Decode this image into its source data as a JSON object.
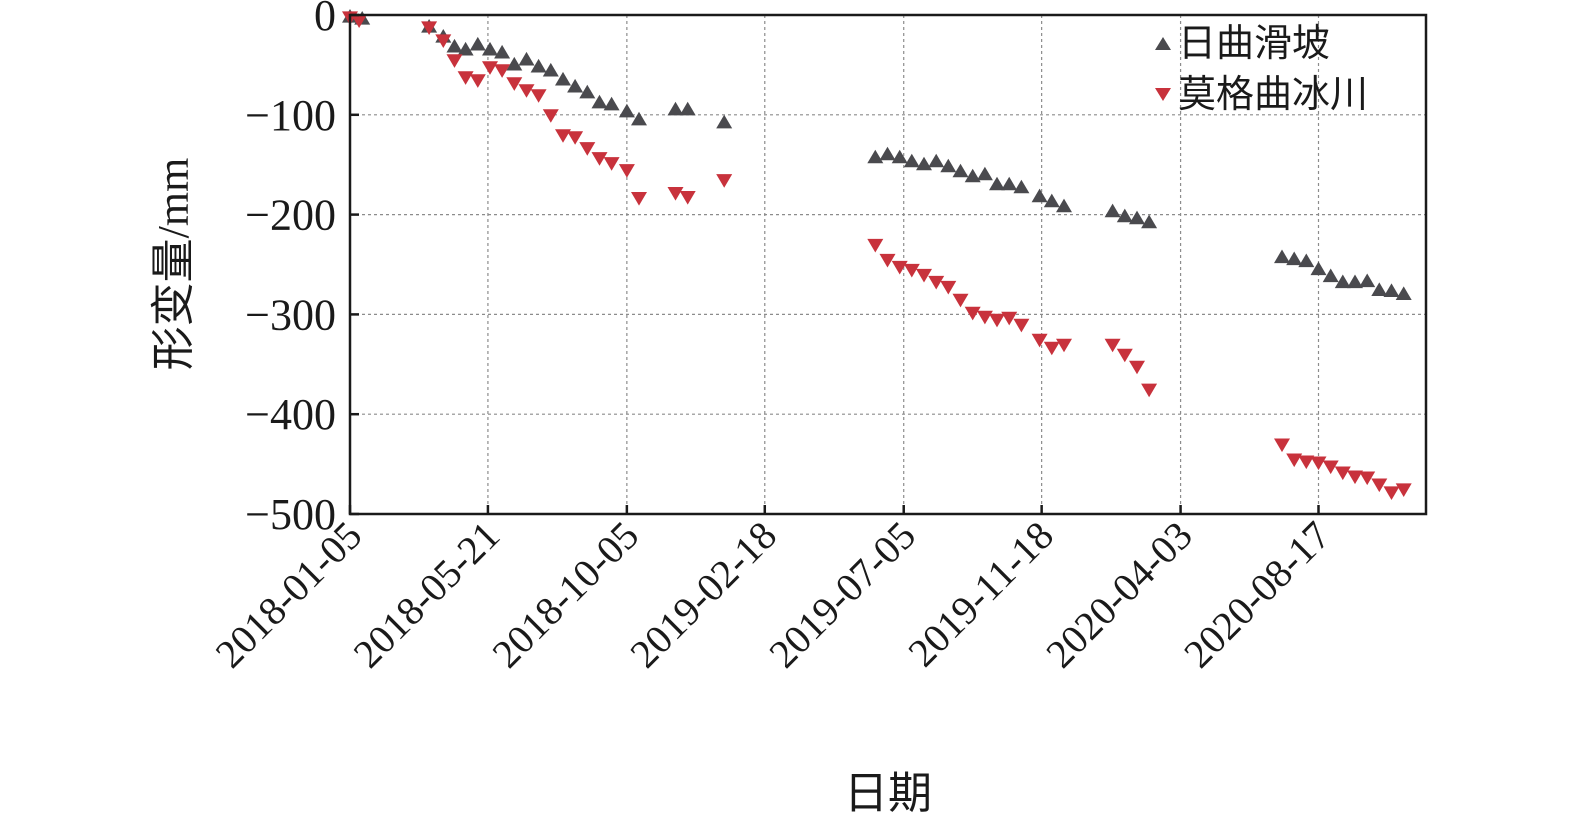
{
  "chart_data": {
    "type": "scatter",
    "xlabel": "日期",
    "ylabel": "形变量/mm",
    "ylim": [
      -500,
      0
    ],
    "yticks": [
      0,
      -100,
      -200,
      -300,
      -400,
      -500
    ],
    "ytick_labels": [
      "0",
      "−100",
      "−200",
      "−300",
      "−400",
      "−500"
    ],
    "xlim": [
      "2018-01-05",
      "2020-12-01"
    ],
    "xticks": [
      "2018-01-05",
      "2018-05-21",
      "2018-10-05",
      "2019-02-18",
      "2019-07-05",
      "2019-11-18",
      "2020-04-03",
      "2020-08-17"
    ],
    "grid": true,
    "legend_position": "top-right",
    "series": [
      {
        "name": "日曲滑坡",
        "marker": "triangle-up",
        "color": "#4a4a4e",
        "x": [
          "2018-01-05",
          "2018-01-17",
          "2018-03-24",
          "2018-04-07",
          "2018-04-18",
          "2018-04-29",
          "2018-05-11",
          "2018-05-23",
          "2018-06-04",
          "2018-06-16",
          "2018-06-28",
          "2018-07-10",
          "2018-07-22",
          "2018-08-03",
          "2018-08-15",
          "2018-08-27",
          "2018-09-08",
          "2018-09-20",
          "2018-10-05",
          "2018-10-17",
          "2018-11-22",
          "2018-12-04",
          "2019-01-09",
          "2019-06-07",
          "2019-06-19",
          "2019-07-01",
          "2019-07-13",
          "2019-07-25",
          "2019-08-06",
          "2019-08-18",
          "2019-08-30",
          "2019-09-11",
          "2019-09-23",
          "2019-10-05",
          "2019-10-17",
          "2019-10-29",
          "2019-11-16",
          "2019-11-28",
          "2019-12-10",
          "2020-01-27",
          "2020-02-08",
          "2020-02-20",
          "2020-03-03",
          "2020-07-12",
          "2020-07-24",
          "2020-08-05",
          "2020-08-17",
          "2020-08-29",
          "2020-09-10",
          "2020-09-22",
          "2020-10-04",
          "2020-10-16",
          "2020-10-28",
          "2020-11-09"
        ],
        "y": [
          -2,
          -4,
          -12,
          -22,
          -32,
          -35,
          -30,
          -35,
          -38,
          -50,
          -45,
          -52,
          -56,
          -65,
          -72,
          -78,
          -88,
          -90,
          -97,
          -105,
          -95,
          -95,
          -108,
          -143,
          -140,
          -143,
          -147,
          -150,
          -147,
          -152,
          -157,
          -162,
          -160,
          -170,
          -170,
          -173,
          -182,
          -187,
          -192,
          -197,
          -202,
          -204,
          -208,
          -243,
          -245,
          -247,
          -255,
          -262,
          -268,
          -268,
          -267,
          -276,
          -277,
          -280
        ]
      },
      {
        "name": "莫格曲冰川",
        "marker": "triangle-down",
        "color": "#c8323c",
        "x": [
          "2018-01-05",
          "2018-01-14",
          "2018-03-24",
          "2018-04-07",
          "2018-04-18",
          "2018-04-29",
          "2018-05-11",
          "2018-05-23",
          "2018-06-04",
          "2018-06-16",
          "2018-06-28",
          "2018-07-10",
          "2018-07-22",
          "2018-08-03",
          "2018-08-15",
          "2018-08-27",
          "2018-09-08",
          "2018-09-20",
          "2018-10-05",
          "2018-10-17",
          "2018-11-22",
          "2018-12-04",
          "2019-01-09",
          "2019-06-07",
          "2019-06-19",
          "2019-07-01",
          "2019-07-13",
          "2019-07-25",
          "2019-08-06",
          "2019-08-18",
          "2019-08-30",
          "2019-09-11",
          "2019-09-23",
          "2019-10-05",
          "2019-10-17",
          "2019-10-29",
          "2019-11-16",
          "2019-11-28",
          "2019-12-10",
          "2020-01-27",
          "2020-02-08",
          "2020-02-20",
          "2020-03-03",
          "2020-07-12",
          "2020-07-24",
          "2020-08-05",
          "2020-08-17",
          "2020-08-29",
          "2020-09-10",
          "2020-09-22",
          "2020-10-04",
          "2020-10-16",
          "2020-10-28",
          "2020-11-09"
        ],
        "y": [
          -2,
          -5,
          -12,
          -25,
          -45,
          -62,
          -65,
          -52,
          -55,
          -68,
          -75,
          -80,
          -100,
          -120,
          -122,
          -133,
          -143,
          -148,
          -155,
          -183,
          -178,
          -182,
          -165,
          -230,
          -245,
          -252,
          -255,
          -260,
          -267,
          -272,
          -285,
          -298,
          -302,
          -305,
          -303,
          -310,
          -325,
          -333,
          -330,
          -330,
          -340,
          -352,
          -375,
          -430,
          -445,
          -447,
          -448,
          -452,
          -458,
          -462,
          -463,
          -470,
          -478,
          -475
        ]
      }
    ]
  }
}
